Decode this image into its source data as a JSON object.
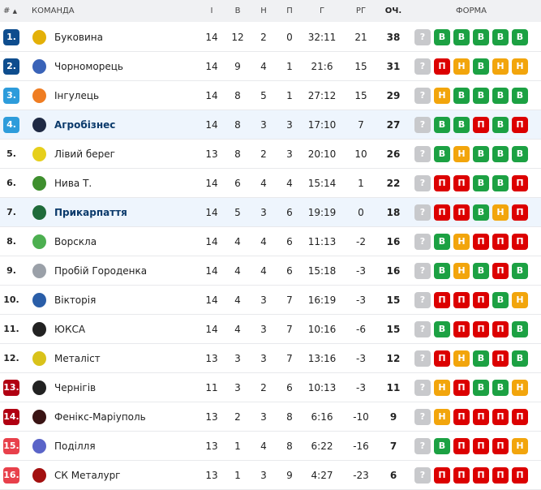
{
  "header": {
    "rank": "#",
    "sort_icon": "▲",
    "team": "КОМАНДА",
    "played": "І",
    "wins": "В",
    "draws": "Н",
    "losses": "П",
    "goals": "Г",
    "goal_diff": "РГ",
    "points": "ОЧ.",
    "form": "ФОРМА"
  },
  "colors": {
    "В": "#1ca143",
    "Н": "#f2a50c",
    "П": "#dc0000",
    "?": "#c8c9cc",
    "promo": "#0e4d8e",
    "promo2": "#2d9cdb",
    "releg": "#b10012",
    "releg2": "#e8404b",
    "highlight": "#eef5fd"
  },
  "rows": [
    {
      "rank": "1.",
      "team": "Буковина",
      "logo": "bukovyna-logo",
      "logo_color": "#e3b008",
      "p": "14",
      "w": "12",
      "d": "2",
      "l": "0",
      "g": "32:11",
      "gd": "21",
      "pts": "38",
      "form": [
        "?",
        "В",
        "В",
        "В",
        "В",
        "В"
      ],
      "zone": "promo"
    },
    {
      "rank": "2.",
      "team": "Чорноморець",
      "logo": "chornomorets-logo",
      "logo_color": "#3a63b8",
      "p": "14",
      "w": "9",
      "d": "4",
      "l": "1",
      "g": "21:6",
      "gd": "15",
      "pts": "31",
      "form": [
        "?",
        "П",
        "Н",
        "В",
        "Н",
        "Н"
      ],
      "zone": "promo"
    },
    {
      "rank": "3.",
      "team": "Інгулець",
      "logo": "inhulets-logo",
      "logo_color": "#ef7d22",
      "p": "14",
      "w": "8",
      "d": "5",
      "l": "1",
      "g": "27:12",
      "gd": "15",
      "pts": "29",
      "form": [
        "?",
        "Н",
        "В",
        "В",
        "В",
        "В"
      ],
      "zone": "promo2"
    },
    {
      "rank": "4.",
      "team": "Агробізнес",
      "logo": "ahrobiznes-logo",
      "logo_color": "#1f2a44",
      "p": "14",
      "w": "8",
      "d": "3",
      "l": "3",
      "g": "17:10",
      "gd": "7",
      "pts": "27",
      "form": [
        "?",
        "В",
        "В",
        "П",
        "В",
        "П"
      ],
      "zone": "promo2",
      "bold": true
    },
    {
      "rank": "5.",
      "team": "Лівий берег",
      "logo": "livyi-bereh-logo",
      "logo_color": "#e6cf1b",
      "p": "13",
      "w": "8",
      "d": "2",
      "l": "3",
      "g": "20:10",
      "gd": "10",
      "pts": "26",
      "form": [
        "?",
        "В",
        "Н",
        "В",
        "В",
        "В"
      ],
      "zone": ""
    },
    {
      "rank": "6.",
      "team": "Нива Т.",
      "logo": "nyva-logo",
      "logo_color": "#3e8f2e",
      "p": "14",
      "w": "6",
      "d": "4",
      "l": "4",
      "g": "15:14",
      "gd": "1",
      "pts": "22",
      "form": [
        "?",
        "П",
        "П",
        "В",
        "В",
        "П"
      ],
      "zone": ""
    },
    {
      "rank": "7.",
      "team": "Прикарпаття",
      "logo": "prykarpattia-logo",
      "logo_color": "#1f6b3a",
      "p": "14",
      "w": "5",
      "d": "3",
      "l": "6",
      "g": "19:19",
      "gd": "0",
      "pts": "18",
      "form": [
        "?",
        "П",
        "П",
        "В",
        "Н",
        "П"
      ],
      "zone": "",
      "bold": true
    },
    {
      "rank": "8.",
      "team": "Ворскла",
      "logo": "vorskla-logo",
      "logo_color": "#4caf50",
      "p": "14",
      "w": "4",
      "d": "4",
      "l": "6",
      "g": "11:13",
      "gd": "-2",
      "pts": "16",
      "form": [
        "?",
        "В",
        "Н",
        "П",
        "П",
        "П"
      ],
      "zone": ""
    },
    {
      "rank": "9.",
      "team": "Пробій Городенка",
      "logo": "probii-logo",
      "logo_color": "#9aa0a8",
      "p": "14",
      "w": "4",
      "d": "4",
      "l": "6",
      "g": "15:18",
      "gd": "-3",
      "pts": "16",
      "form": [
        "?",
        "В",
        "Н",
        "В",
        "П",
        "В"
      ],
      "zone": ""
    },
    {
      "rank": "10.",
      "team": "Вікторія",
      "logo": "viktoriia-logo",
      "logo_color": "#2a5ea8",
      "p": "14",
      "w": "4",
      "d": "3",
      "l": "7",
      "g": "16:19",
      "gd": "-3",
      "pts": "15",
      "form": [
        "?",
        "П",
        "П",
        "П",
        "В",
        "Н"
      ],
      "zone": ""
    },
    {
      "rank": "11.",
      "team": "ЮКСА",
      "logo": "yuksa-logo",
      "logo_color": "#222222",
      "p": "14",
      "w": "4",
      "d": "3",
      "l": "7",
      "g": "10:16",
      "gd": "-6",
      "pts": "15",
      "form": [
        "?",
        "В",
        "П",
        "П",
        "П",
        "В"
      ],
      "zone": ""
    },
    {
      "rank": "12.",
      "team": "Металіст",
      "logo": "metalist-logo",
      "logo_color": "#d9c21a",
      "p": "13",
      "w": "3",
      "d": "3",
      "l": "7",
      "g": "13:16",
      "gd": "-3",
      "pts": "12",
      "form": [
        "?",
        "П",
        "Н",
        "В",
        "П",
        "В"
      ],
      "zone": ""
    },
    {
      "rank": "13.",
      "team": "Чернігів",
      "logo": "chernihiv-logo",
      "logo_color": "#222222",
      "p": "11",
      "w": "3",
      "d": "2",
      "l": "6",
      "g": "10:13",
      "gd": "-3",
      "pts": "11",
      "form": [
        "?",
        "Н",
        "П",
        "В",
        "В",
        "Н"
      ],
      "zone": "releg"
    },
    {
      "rank": "14.",
      "team": "Фенікс-Маріуполь",
      "logo": "feniks-logo",
      "logo_color": "#3a1414",
      "p": "13",
      "w": "2",
      "d": "3",
      "l": "8",
      "g": "6:16",
      "gd": "-10",
      "pts": "9",
      "form": [
        "?",
        "Н",
        "П",
        "П",
        "П",
        "П"
      ],
      "zone": "releg"
    },
    {
      "rank": "15.",
      "team": "Поділля",
      "logo": "podillia-logo",
      "logo_color": "#5a64c8",
      "p": "13",
      "w": "1",
      "d": "4",
      "l": "8",
      "g": "6:22",
      "gd": "-16",
      "pts": "7",
      "form": [
        "?",
        "В",
        "П",
        "П",
        "П",
        "Н"
      ],
      "zone": "releg2"
    },
    {
      "rank": "16.",
      "team": "СК Металург",
      "logo": "metalurh-logo",
      "logo_color": "#a31010",
      "p": "13",
      "w": "1",
      "d": "3",
      "l": "9",
      "g": "4:27",
      "gd": "-23",
      "pts": "6",
      "form": [
        "?",
        "П",
        "П",
        "П",
        "П",
        "П"
      ],
      "zone": "releg2"
    }
  ]
}
